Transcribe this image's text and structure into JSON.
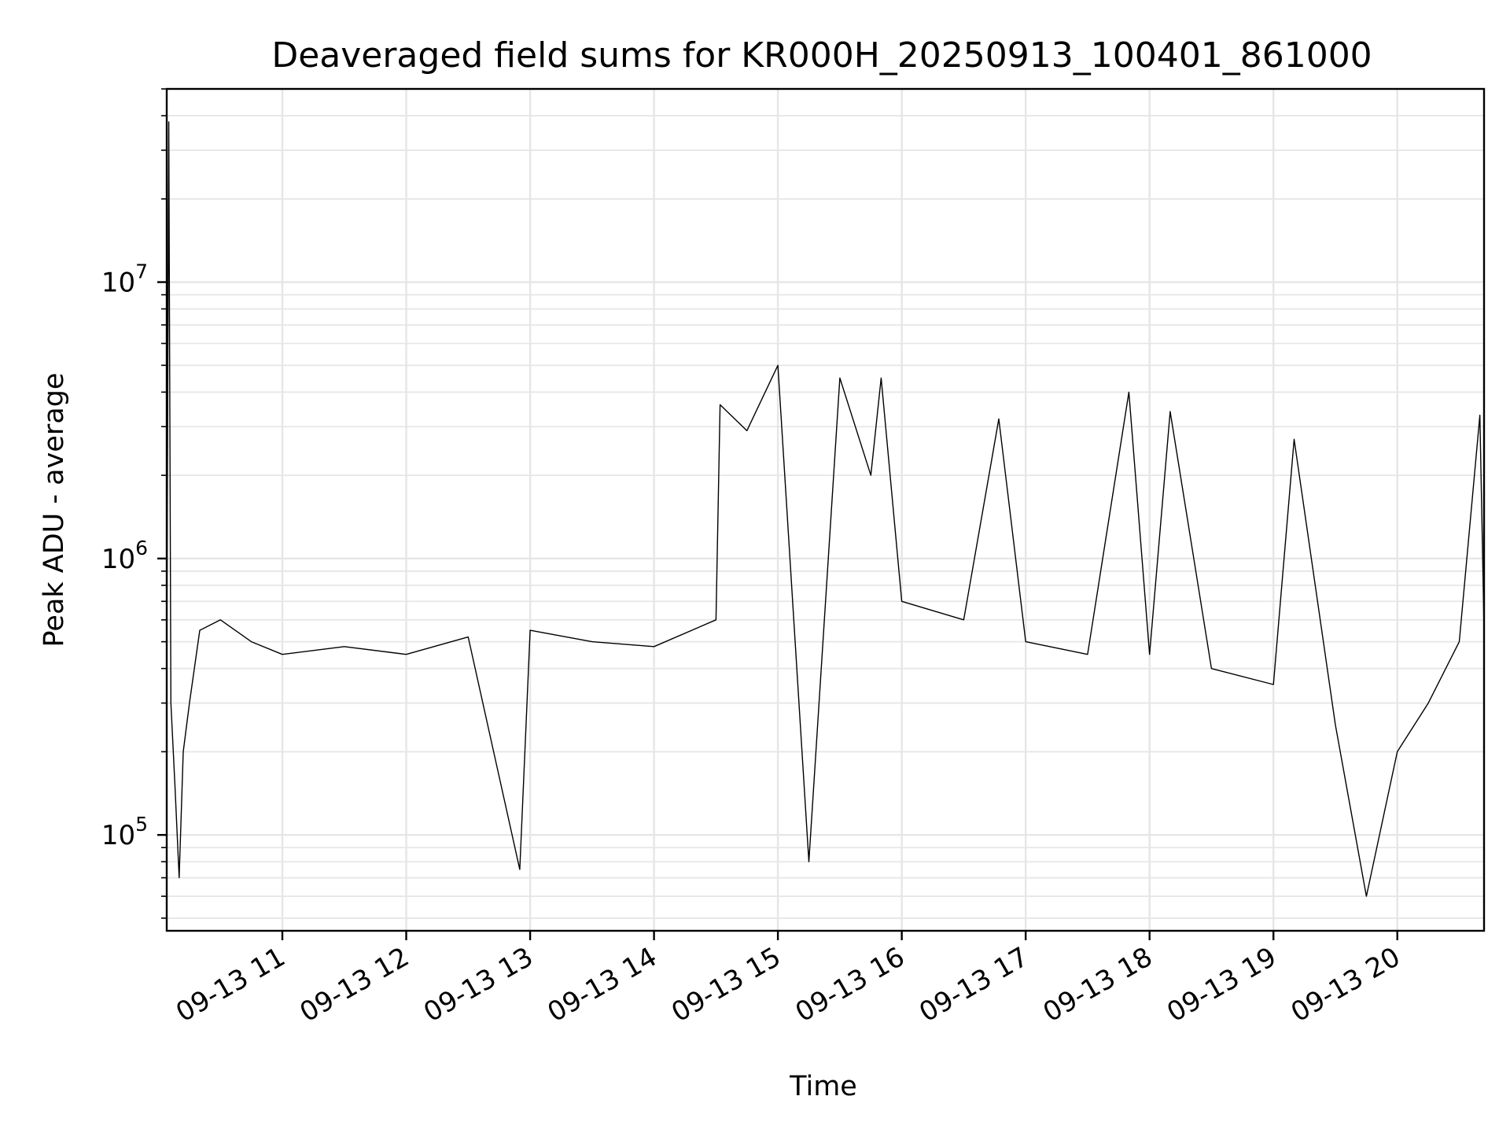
{
  "chart_data": {
    "type": "line",
    "title": "Deaveraged field sums for KR000H_20250913_100401_861000",
    "xlabel": "Time",
    "ylabel": "Peak ADU - average",
    "y_scale": "log",
    "ylim": [
      45000,
      50000000
    ],
    "xlim": [
      "2025-09-13 10:04",
      "2025-09-13 20:42"
    ],
    "x_ticks": [
      {
        "label": "09-13 11",
        "time": "2025-09-13 11:00"
      },
      {
        "label": "09-13 12",
        "time": "2025-09-13 12:00"
      },
      {
        "label": "09-13 13",
        "time": "2025-09-13 13:00"
      },
      {
        "label": "09-13 14",
        "time": "2025-09-13 14:00"
      },
      {
        "label": "09-13 15",
        "time": "2025-09-13 15:00"
      },
      {
        "label": "09-13 16",
        "time": "2025-09-13 16:00"
      },
      {
        "label": "09-13 17",
        "time": "2025-09-13 17:00"
      },
      {
        "label": "09-13 18",
        "time": "2025-09-13 18:00"
      },
      {
        "label": "09-13 19",
        "time": "2025-09-13 19:00"
      },
      {
        "label": "09-13 20",
        "time": "2025-09-13 20:00"
      }
    ],
    "y_ticks": [
      {
        "base": "10",
        "exp": "5",
        "value": 100000
      },
      {
        "base": "10",
        "exp": "6",
        "value": 1000000
      },
      {
        "base": "10",
        "exp": "7",
        "value": 10000000
      }
    ],
    "grid": true,
    "line_color": "#000000",
    "grid_color": "#e6e6e6",
    "series": [
      {
        "name": "",
        "points": [
          [
            "2025-09-13 10:04",
            400000
          ],
          [
            "2025-09-13 10:05",
            38000000
          ],
          [
            "2025-09-13 10:06",
            300000
          ],
          [
            "2025-09-13 10:08",
            150000
          ],
          [
            "2025-09-13 10:10",
            70000
          ],
          [
            "2025-09-13 10:12",
            200000
          ],
          [
            "2025-09-13 10:15",
            300000
          ],
          [
            "2025-09-13 10:20",
            550000
          ],
          [
            "2025-09-13 10:30",
            600000
          ],
          [
            "2025-09-13 10:45",
            500000
          ],
          [
            "2025-09-13 11:00",
            450000
          ],
          [
            "2025-09-13 11:30",
            480000
          ],
          [
            "2025-09-13 12:00",
            450000
          ],
          [
            "2025-09-13 12:30",
            520000
          ],
          [
            "2025-09-13 12:55",
            75000
          ],
          [
            "2025-09-13 13:00",
            550000
          ],
          [
            "2025-09-13 13:30",
            500000
          ],
          [
            "2025-09-13 14:00",
            480000
          ],
          [
            "2025-09-13 14:30",
            600000
          ],
          [
            "2025-09-13 14:32",
            3600000
          ],
          [
            "2025-09-13 14:45",
            2900000
          ],
          [
            "2025-09-13 15:00",
            5000000
          ],
          [
            "2025-09-13 15:15",
            80000
          ],
          [
            "2025-09-13 15:30",
            4500000
          ],
          [
            "2025-09-13 15:45",
            2000000
          ],
          [
            "2025-09-13 15:50",
            4500000
          ],
          [
            "2025-09-13 16:00",
            700000
          ],
          [
            "2025-09-13 16:30",
            600000
          ],
          [
            "2025-09-13 16:47",
            3200000
          ],
          [
            "2025-09-13 17:00",
            500000
          ],
          [
            "2025-09-13 17:30",
            450000
          ],
          [
            "2025-09-13 17:50",
            4000000
          ],
          [
            "2025-09-13 18:00",
            450000
          ],
          [
            "2025-09-13 18:10",
            3400000
          ],
          [
            "2025-09-13 18:30",
            400000
          ],
          [
            "2025-09-13 19:00",
            350000
          ],
          [
            "2025-09-13 19:10",
            2700000
          ],
          [
            "2025-09-13 19:30",
            250000
          ],
          [
            "2025-09-13 19:45",
            60000
          ],
          [
            "2025-09-13 20:00",
            200000
          ],
          [
            "2025-09-13 20:15",
            300000
          ],
          [
            "2025-09-13 20:30",
            500000
          ],
          [
            "2025-09-13 20:40",
            3300000
          ],
          [
            "2025-09-13 20:42",
            550000
          ]
        ]
      }
    ]
  }
}
